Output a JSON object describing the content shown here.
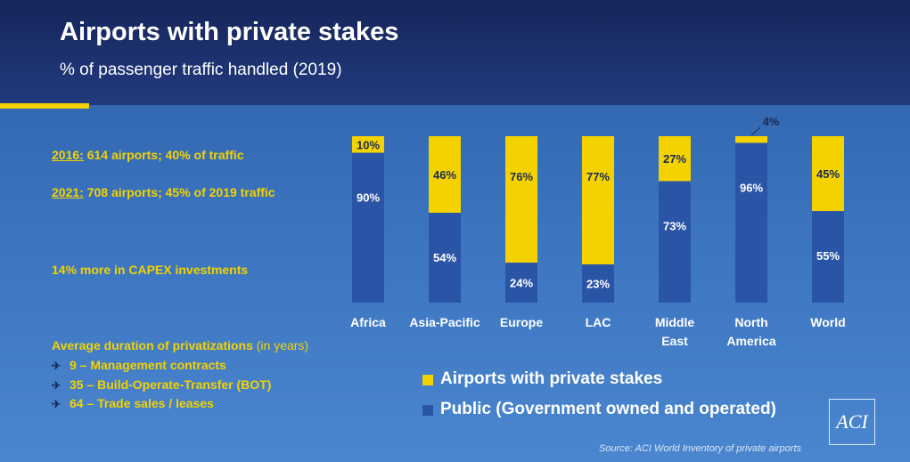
{
  "header": {
    "title": "Airports with private stakes",
    "subtitle": "% of passenger traffic handled (2019)"
  },
  "stats": {
    "s2016_year": "2016:",
    "s2016_text": " 614 airports; 40% of traffic",
    "s2021_year": "2021:",
    "s2021_text": " 708 airports; 45% of 2019 traffic",
    "capex": "14% more in CAPEX investments"
  },
  "duration": {
    "title": "Average duration of privatizations",
    "title_suffix": " (in years)",
    "items": [
      "9 – Management contracts",
      "35 – Build-Operate-Transfer (BOT)",
      "64 – Trade sales / leases"
    ]
  },
  "legend": {
    "private": "Airports with private stakes",
    "public": "Public (Government owned and operated)"
  },
  "source": "Source: ACI World Inventory of private airports",
  "logo": "ACI",
  "colors": {
    "private": "#f3d200",
    "public": "#2a55a6",
    "header": "#1d3270"
  },
  "chart_data": {
    "type": "bar",
    "stacked": true,
    "title": "Airports with private stakes",
    "subtitle": "% of passenger traffic handled (2019)",
    "categories": [
      [
        "Africa"
      ],
      [
        "Asia-Pacific"
      ],
      [
        "Europe"
      ],
      [
        "LAC"
      ],
      [
        "Middle",
        "East"
      ],
      [
        "North",
        "America"
      ],
      [
        "World"
      ]
    ],
    "series": [
      {
        "name": "Public (Government owned and operated)",
        "values": [
          90,
          54,
          24,
          23,
          73,
          96,
          55
        ]
      },
      {
        "name": "Airports with private stakes",
        "values": [
          10,
          46,
          76,
          77,
          27,
          4,
          45
        ]
      }
    ],
    "value_labels": {
      "public": [
        "90%",
        "54%",
        "24%",
        "23%",
        "73%",
        "96%",
        "55%"
      ],
      "private": [
        "10%",
        "46%",
        "76%",
        "77%",
        "27%",
        "4%",
        "45%"
      ]
    },
    "ylim": [
      0,
      100
    ],
    "grid": false,
    "legend_position": "bottom-center"
  }
}
